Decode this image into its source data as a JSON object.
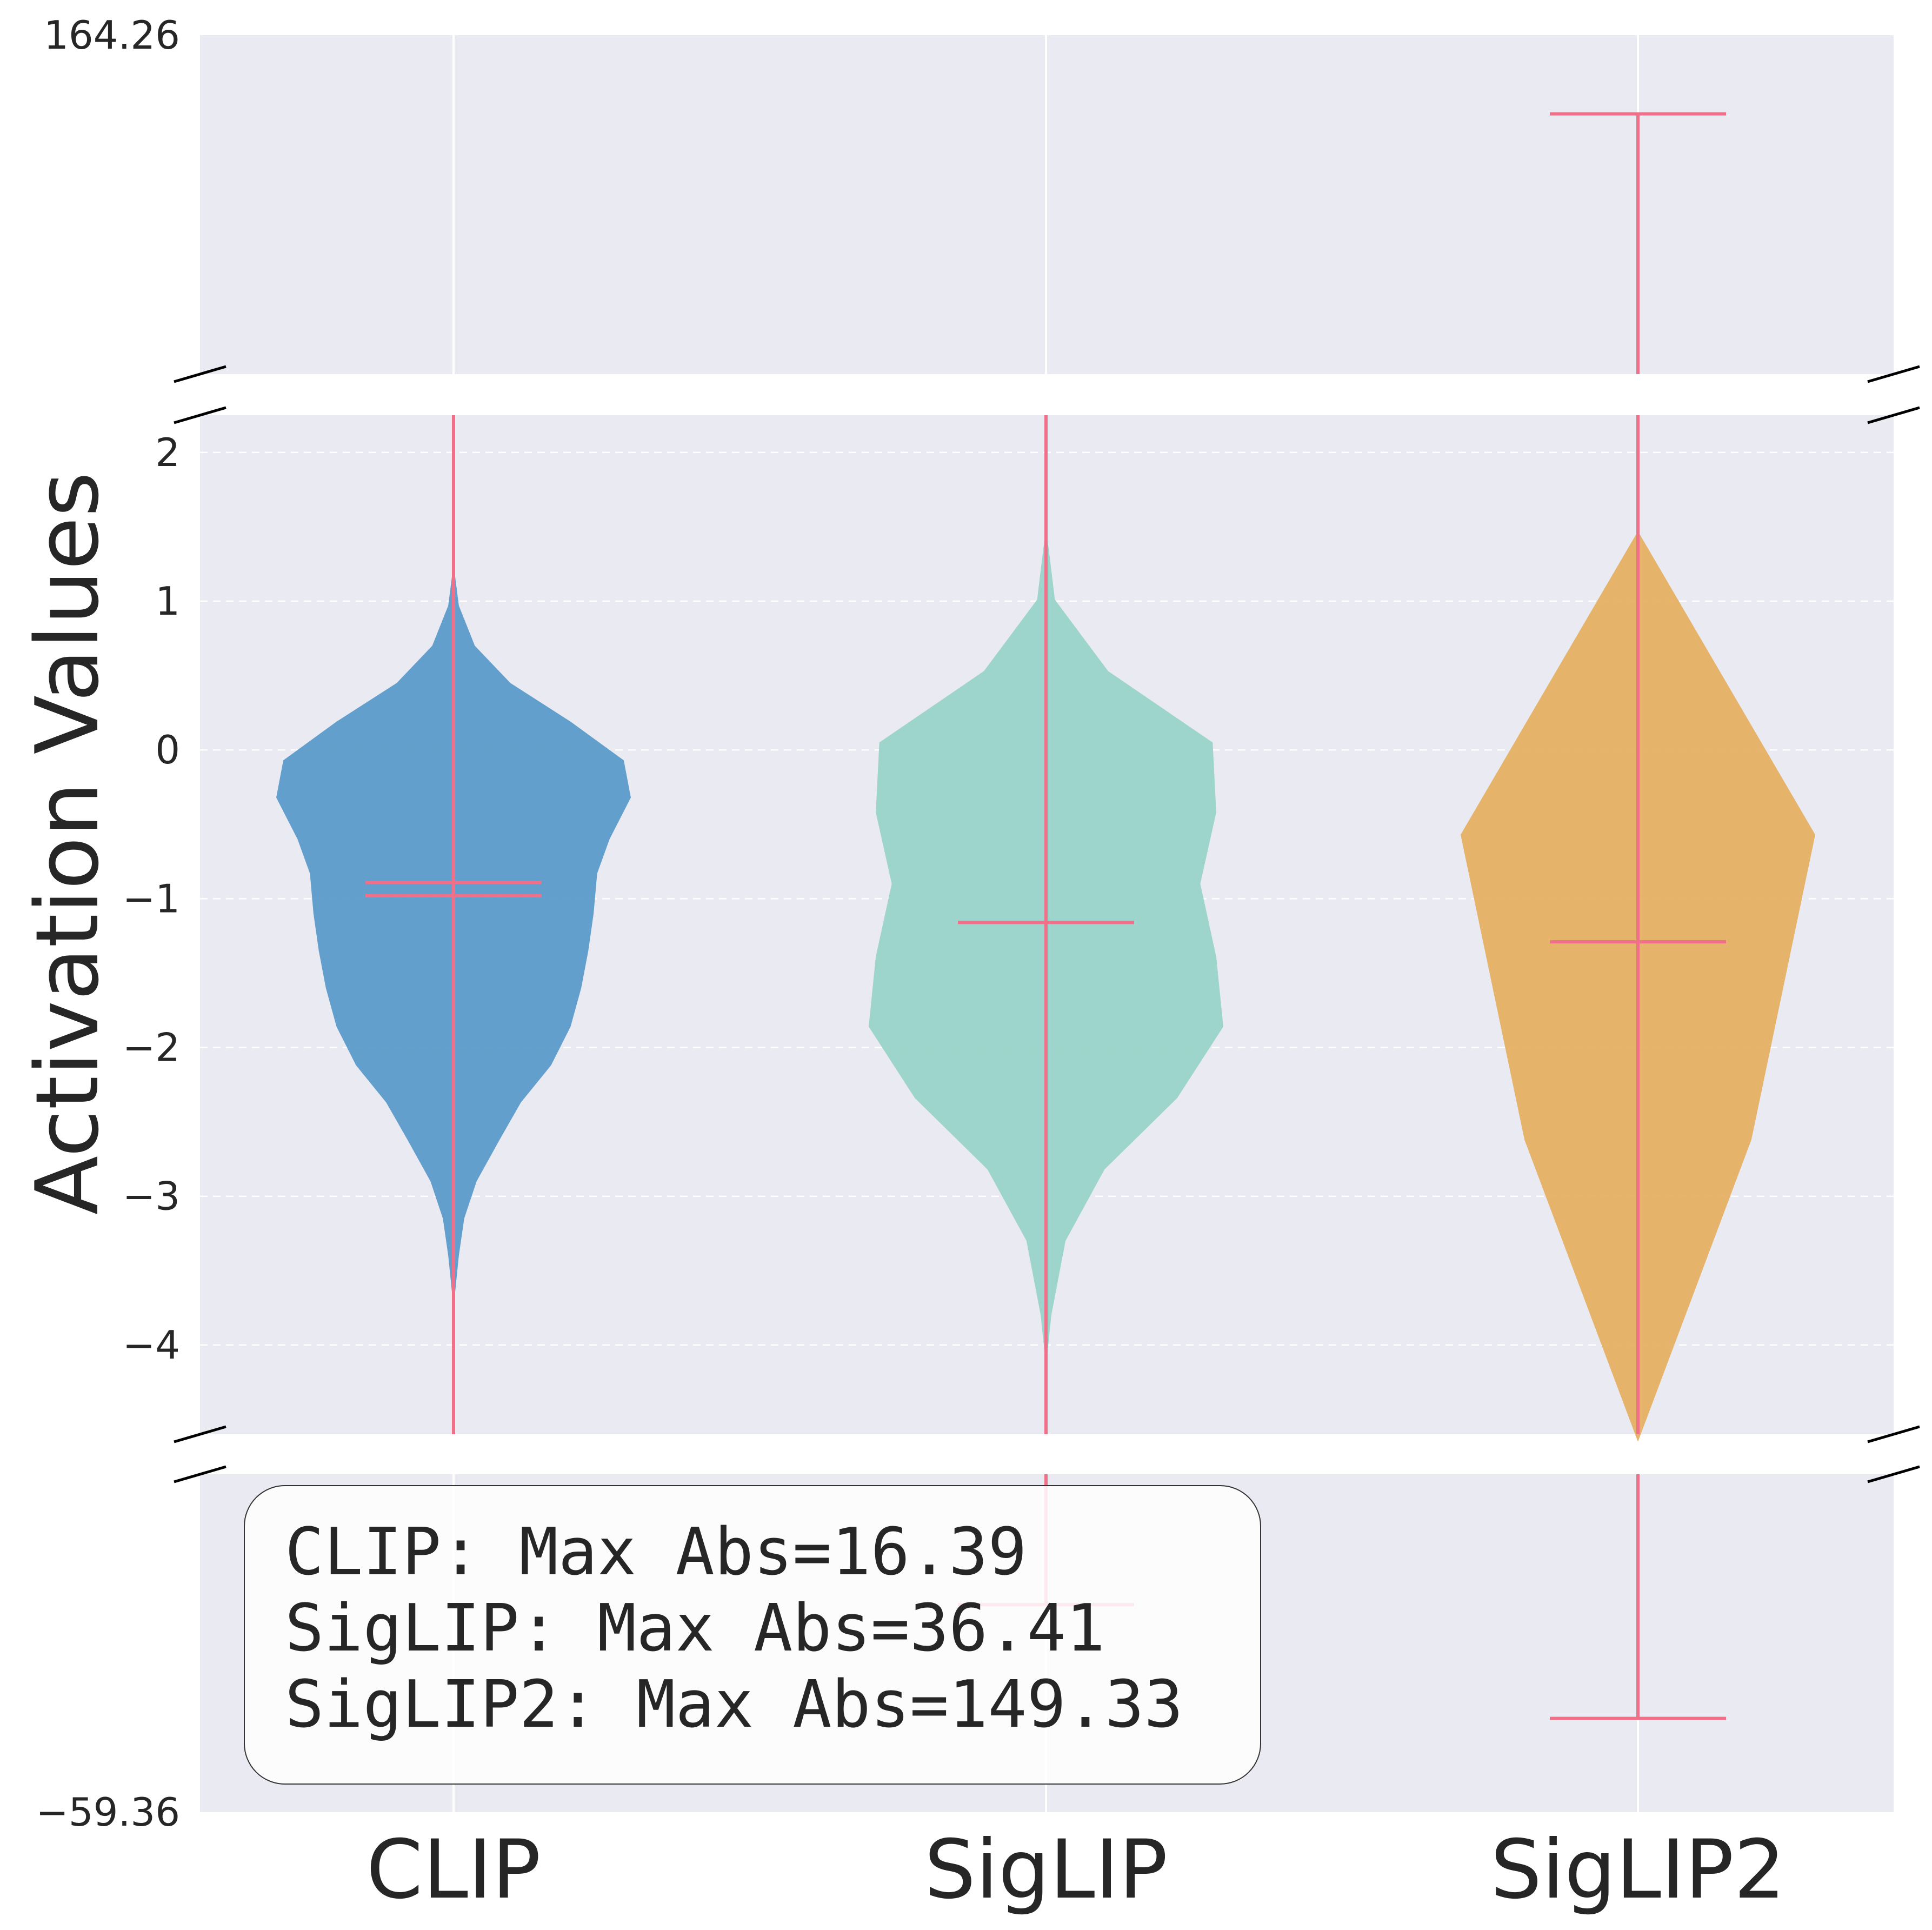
{
  "chart_data": {
    "type": "violin",
    "ylabel": "Activation Values",
    "broken_axis": true,
    "y_extremes": {
      "top_label": "164.26",
      "bottom_label": "−59.36",
      "top": 164.26,
      "bottom": -59.36
    },
    "main_ylim": [
      -4.6,
      2.25
    ],
    "main_yticks": [
      {
        "value": 2,
        "label": "2"
      },
      {
        "value": 1,
        "label": "1"
      },
      {
        "value": 0,
        "label": "0"
      },
      {
        "value": -1,
        "label": "−1"
      },
      {
        "value": -2,
        "label": "−2"
      },
      {
        "value": -3,
        "label": "−3"
      },
      {
        "value": -4,
        "label": "−4"
      }
    ],
    "grid": true,
    "series": [
      {
        "name": "CLIP",
        "color": "#5b9bc9",
        "mean": -0.89,
        "median": -0.98,
        "whisker_min": -16.39,
        "whisker_max": 16.39,
        "profile": [
          [
            1.25,
            0.0
          ],
          [
            0.97,
            0.03
          ],
          [
            0.7,
            0.12
          ],
          [
            0.45,
            0.32
          ],
          [
            0.19,
            0.66
          ],
          [
            -0.07,
            0.96
          ],
          [
            -0.32,
            1.0
          ],
          [
            -0.6,
            0.88
          ],
          [
            -0.83,
            0.81
          ],
          [
            -1.1,
            0.79
          ],
          [
            -1.35,
            0.76
          ],
          [
            -1.6,
            0.72
          ],
          [
            -1.86,
            0.66
          ],
          [
            -2.12,
            0.55
          ],
          [
            -2.37,
            0.38
          ],
          [
            -2.62,
            0.26
          ],
          [
            -2.9,
            0.13
          ],
          [
            -3.15,
            0.06
          ],
          [
            -3.4,
            0.03
          ],
          [
            -3.75,
            0.0
          ]
        ]
      },
      {
        "name": "SigLIP",
        "color": "#99d3c8",
        "mean": -1.16,
        "median": -1.16,
        "whisker_min": -36.41,
        "whisker_max": 36.41,
        "profile": [
          [
            1.5,
            0.0
          ],
          [
            1.01,
            0.05
          ],
          [
            0.53,
            0.35
          ],
          [
            0.05,
            0.94
          ],
          [
            -0.42,
            0.96
          ],
          [
            -0.9,
            0.87
          ],
          [
            -1.39,
            0.96
          ],
          [
            -1.86,
            1.0
          ],
          [
            -2.34,
            0.74
          ],
          [
            -2.82,
            0.33
          ],
          [
            -3.3,
            0.11
          ],
          [
            -3.8,
            0.03
          ],
          [
            -4.15,
            0.0
          ]
        ]
      },
      {
        "name": "SigLIP2",
        "color": "#e5b062",
        "mean": -1.29,
        "median": -1.29,
        "whisker_min": -49.0,
        "whisker_max": 149.33,
        "profile": [
          [
            1.47,
            0.0
          ],
          [
            -0.57,
            1.0
          ],
          [
            -2.62,
            0.64
          ],
          [
            -4.65,
            0.0
          ]
        ]
      }
    ],
    "annotation": {
      "lines": [
        "CLIP: Max Abs=16.39",
        "SigLIP: Max Abs=36.41",
        "SigLIP2: Max Abs=149.33"
      ]
    },
    "colors": {
      "background": "#eaeaf2",
      "grid": "#ffffff",
      "stats_line": "#f0708a",
      "text": "#262626"
    }
  }
}
